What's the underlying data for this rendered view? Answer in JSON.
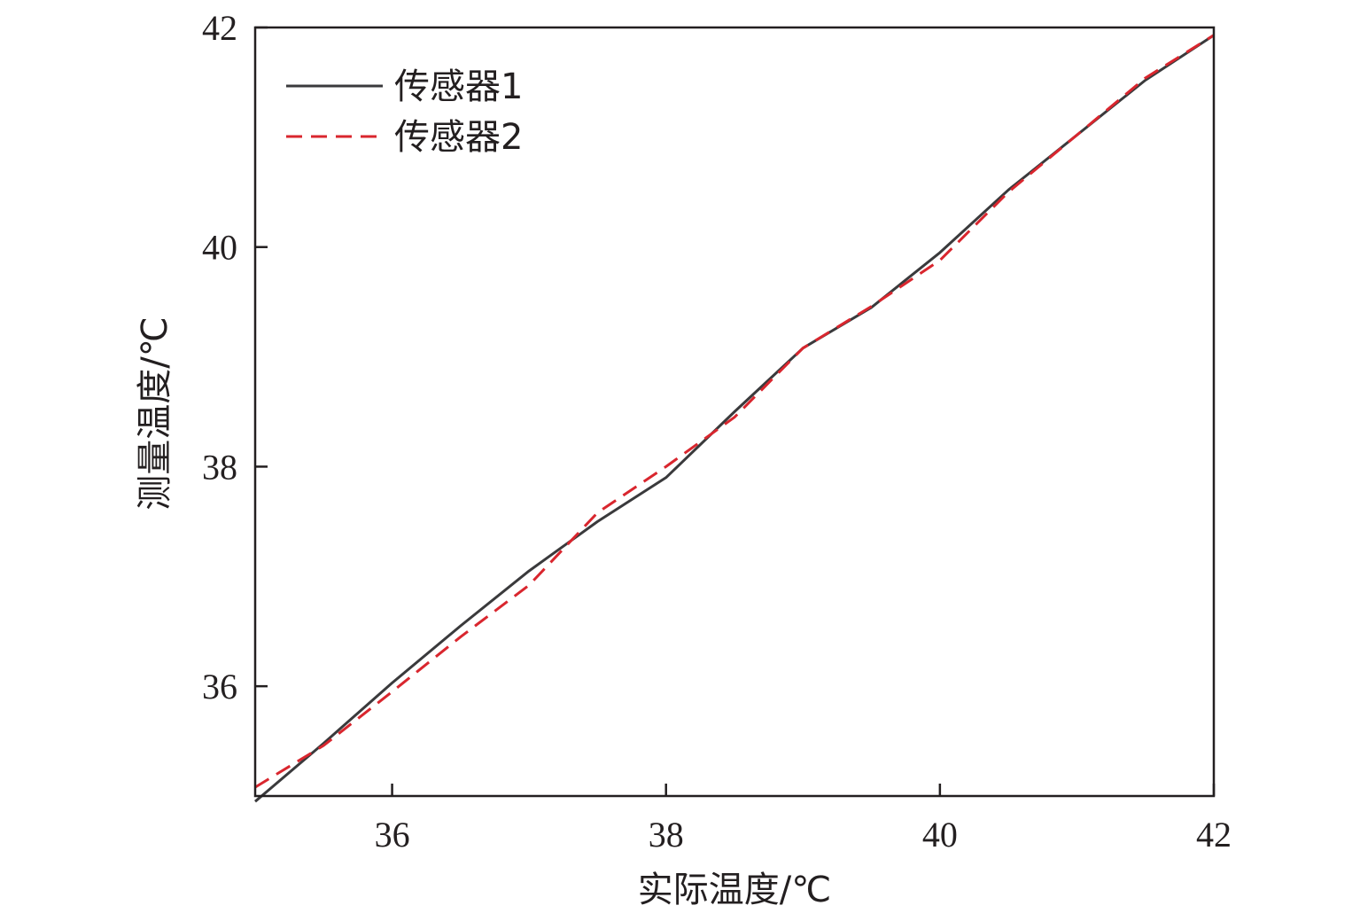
{
  "chart_data": {
    "type": "line",
    "title": "",
    "xlabel": "实际温度/℃",
    "ylabel": "测量温度/℃",
    "xlim": [
      35,
      42
    ],
    "ylim": [
      35,
      42
    ],
    "xticks": [
      36,
      38,
      40,
      42
    ],
    "yticks": [
      36,
      38,
      40,
      42
    ],
    "x_tick_labels": [
      "36",
      "38",
      "40",
      "42"
    ],
    "y_tick_labels": [
      "36",
      "38",
      "40",
      "42"
    ],
    "grid": false,
    "legend": "top-left",
    "series": [
      {
        "name": "传感器1",
        "color": "#3a3a3c",
        "style": "solid",
        "x": [
          35.0,
          35.5,
          36.0,
          36.5,
          37.0,
          37.5,
          38.0,
          38.5,
          39.0,
          39.5,
          40.0,
          40.5,
          41.0,
          41.5,
          42.0
        ],
        "y": [
          34.95,
          35.48,
          36.03,
          36.55,
          37.05,
          37.5,
          37.9,
          38.5,
          39.08,
          39.45,
          39.95,
          40.52,
          41.02,
          41.52,
          41.93
        ]
      },
      {
        "name": "传感器2",
        "color": "#d9262e",
        "style": "dashed",
        "x": [
          35.0,
          35.5,
          36.0,
          36.5,
          37.0,
          37.5,
          38.0,
          38.5,
          39.0,
          39.5,
          40.0,
          40.5,
          41.0,
          41.5,
          42.0
        ],
        "y": [
          35.08,
          35.46,
          35.95,
          36.45,
          36.92,
          37.58,
          38.0,
          38.45,
          39.08,
          39.46,
          39.88,
          40.5,
          41.02,
          41.54,
          41.93
        ]
      }
    ]
  }
}
